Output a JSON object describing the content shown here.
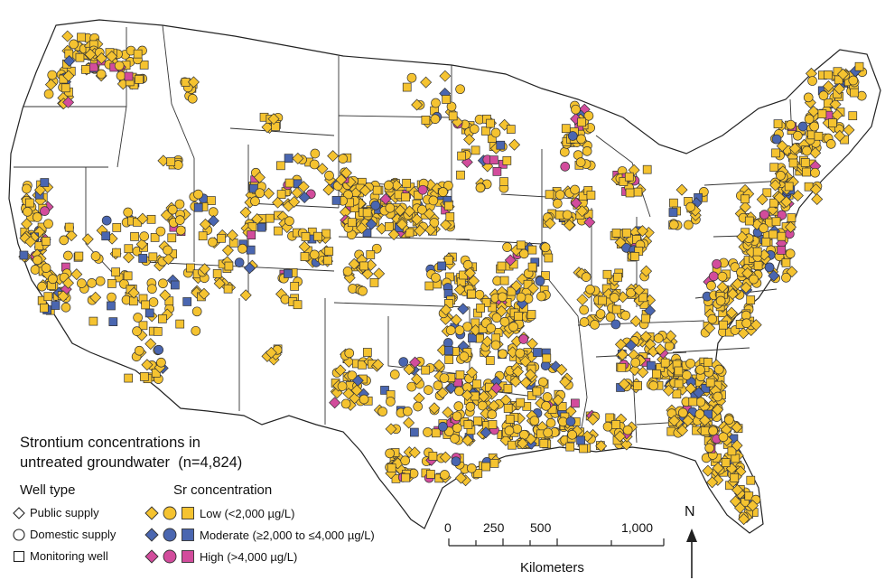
{
  "legend": {
    "title_line1": "Strontium concentrations in",
    "title_line2": "untreated groundwater",
    "title_n": "(n=4,824)",
    "well_type_heading": "Well type",
    "well_types": [
      {
        "shape": "diamond",
        "label": "Public supply"
      },
      {
        "shape": "circle",
        "label": "Domestic supply"
      },
      {
        "shape": "square",
        "label": "Monitoring well"
      }
    ],
    "sr_heading": "Sr concentration",
    "classes": [
      {
        "label": "Low (<2,000 µg/L)",
        "color": "#f5c330"
      },
      {
        "label": "Moderate (≥2,000 to ≤4,000 µg/L)",
        "color": "#4a66b0"
      },
      {
        "label": "High (>4,000 µg/L)",
        "color": "#d24c9c"
      }
    ]
  },
  "scale_bar": {
    "ticks": [
      "0",
      "250",
      "500",
      "1,000"
    ],
    "tick_values_km": [
      0,
      250,
      500,
      1000
    ],
    "unit": "Kilometers"
  },
  "north_arrow": {
    "label": "N"
  },
  "colors": {
    "low": "#f5c330",
    "moderate": "#4a66b0",
    "high": "#d24c9c",
    "outline": "#333333",
    "border": "#222222"
  },
  "icons": [
    "diamond-symbol-icon",
    "circle-symbol-icon",
    "square-symbol-icon",
    "north-arrow-icon"
  ]
}
